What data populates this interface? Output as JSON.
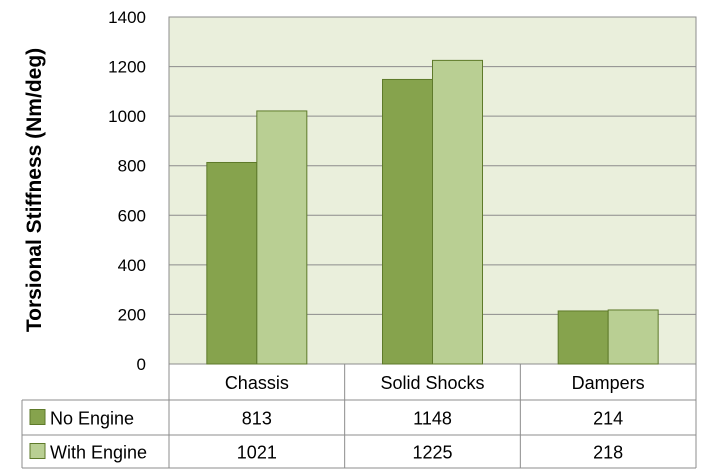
{
  "chart_data": {
    "type": "bar",
    "title": "",
    "xlabel": "",
    "ylabel": "Torsional Stiffness (Nm/deg)",
    "ylim": [
      0,
      1400
    ],
    "yticks": [
      0,
      200,
      400,
      600,
      800,
      1000,
      1200,
      1400
    ],
    "grid": true,
    "categories": [
      "Chassis",
      "Solid Shocks",
      "Dampers"
    ],
    "series": [
      {
        "name": "No Engine",
        "values": [
          813,
          1148,
          214
        ],
        "color": "#86a34d"
      },
      {
        "name": "With Engine",
        "values": [
          1021,
          1225,
          218
        ],
        "color": "#b9cf93"
      }
    ],
    "data_table": true,
    "plot_background": "#eaefdc",
    "bar_stroke": "#5e7a2a"
  }
}
